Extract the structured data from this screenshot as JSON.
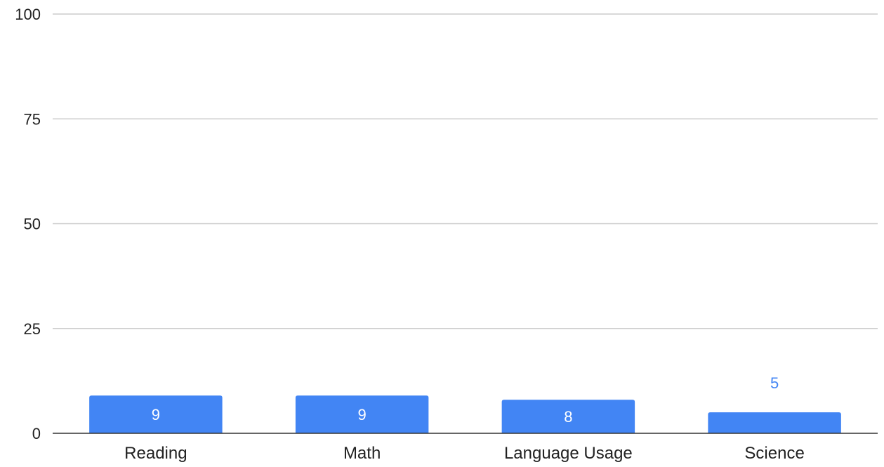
{
  "chart_data": {
    "type": "bar",
    "categories": [
      "Reading",
      "Math",
      "Language Usage",
      "Science"
    ],
    "values": [
      9,
      9,
      8,
      5
    ],
    "data_labels": [
      "9",
      "9",
      "8",
      "5"
    ],
    "title": "",
    "xlabel": "",
    "ylabel": "",
    "ylim": [
      0,
      100
    ],
    "yticks": [
      0,
      25,
      50,
      75,
      100
    ],
    "ytick_labels": [
      "0",
      "25",
      "50",
      "75",
      "100"
    ],
    "grid": true,
    "legend": "none",
    "colors": {
      "bar": "#4285f4",
      "label_inside": "#ffffff",
      "label_outside": "#4285f4",
      "grid": "#cccccc",
      "axis": "#333333",
      "text": "#222222"
    }
  }
}
